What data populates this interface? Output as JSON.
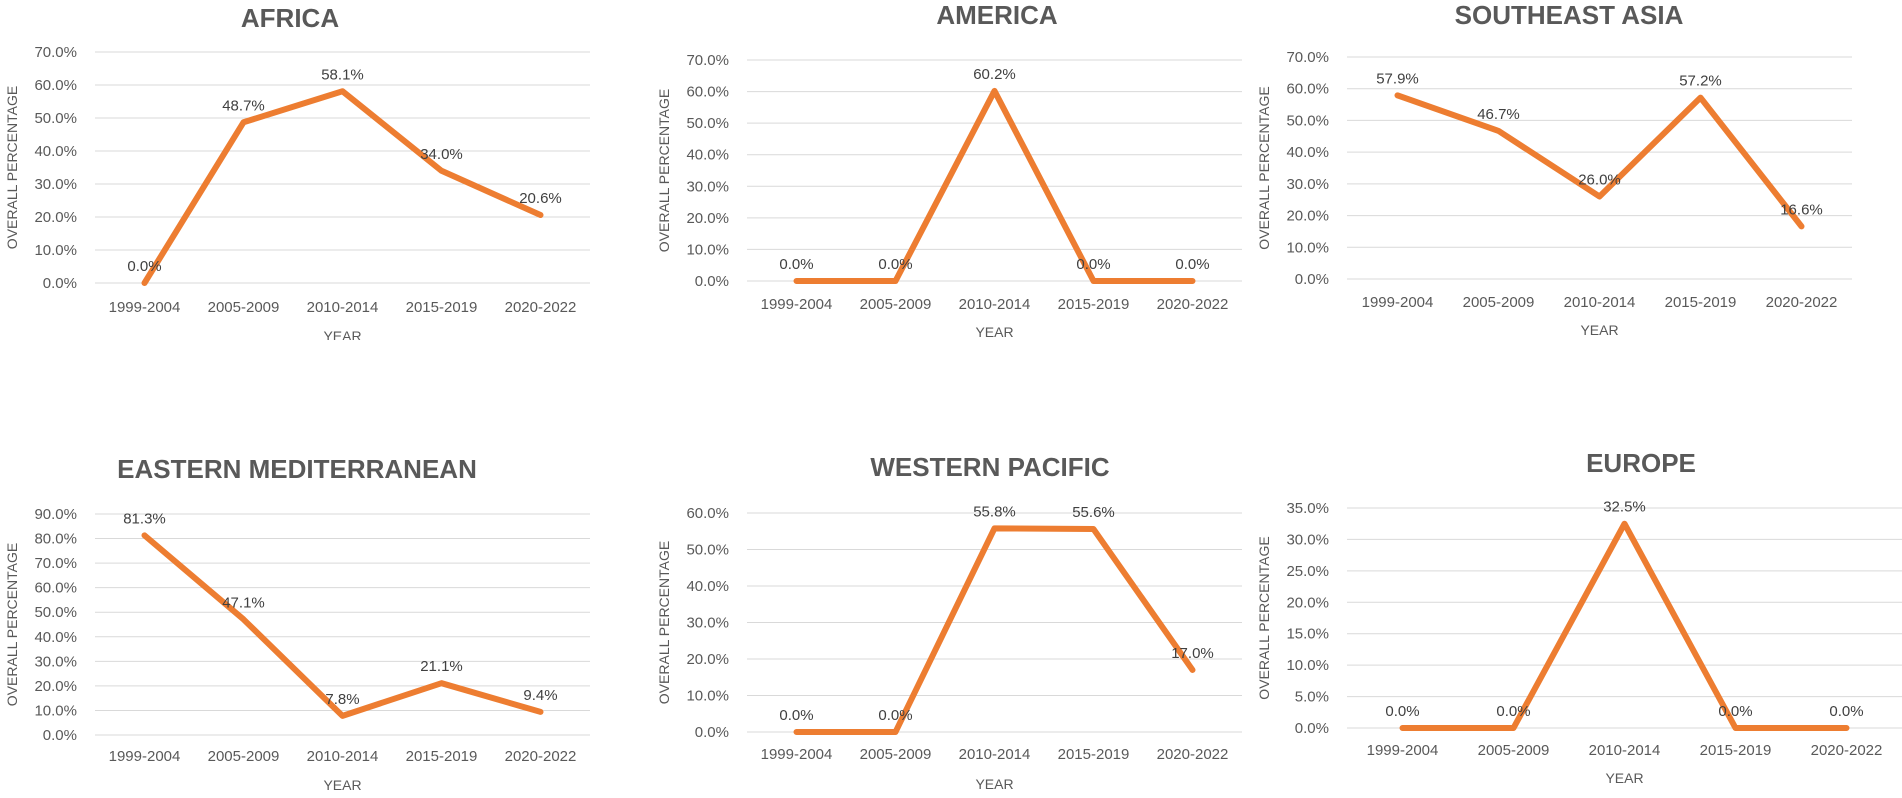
{
  "chart_data": [
    {
      "type": "line",
      "title": "AFRICA",
      "xlabel": "YEAR",
      "ylabel": "OVERALL PERCENTAGE",
      "categories": [
        "1999-2004",
        "2005-2009",
        "2010-2014",
        "2015-2019",
        "2020-2022"
      ],
      "values": [
        0.0,
        48.7,
        58.1,
        34.0,
        20.6
      ],
      "data_labels": [
        "0.0%",
        "48.7%",
        "58.1%",
        "34.0%",
        "20.6%"
      ],
      "yticks": [
        "0.0%",
        "10.0%",
        "20.0%",
        "30.0%",
        "40.0%",
        "50.0%",
        "60.0%",
        "70.0%"
      ],
      "ylim": [
        0,
        70
      ],
      "grid": true,
      "color": "#ED7D31"
    },
    {
      "type": "line",
      "title": "AMERICA",
      "xlabel": "YEAR",
      "ylabel": "OVERALL PERCENTAGE",
      "categories": [
        "1999-2004",
        "2005-2009",
        "2010-2014",
        "2015-2019",
        "2020-2022"
      ],
      "values": [
        0.0,
        0.0,
        60.2,
        0.0,
        0.0
      ],
      "data_labels": [
        "0.0%",
        "0.0%",
        "60.2%",
        "0.0%",
        "0.0%"
      ],
      "yticks": [
        "0.0%",
        "10.0%",
        "20.0%",
        "30.0%",
        "40.0%",
        "50.0%",
        "60.0%",
        "70.0%"
      ],
      "ylim": [
        0,
        70
      ],
      "grid": true,
      "color": "#ED7D31"
    },
    {
      "type": "line",
      "title": "SOUTHEAST ASIA",
      "xlabel": "YEAR",
      "ylabel": "OVERALL PERCENTAGE",
      "categories": [
        "1999-2004",
        "2005-2009",
        "2010-2014",
        "2015-2019",
        "2020-2022"
      ],
      "values": [
        57.9,
        46.7,
        26.0,
        57.2,
        16.6
      ],
      "data_labels": [
        "57.9%",
        "46.7%",
        "26.0%",
        "57.2%",
        "16.6%"
      ],
      "yticks": [
        "0.0%",
        "10.0%",
        "20.0%",
        "30.0%",
        "40.0%",
        "50.0%",
        "60.0%",
        "70.0%"
      ],
      "ylim": [
        0,
        70
      ],
      "grid": true,
      "color": "#ED7D31"
    },
    {
      "type": "line",
      "title": "EASTERN MEDITERRANEAN",
      "xlabel": "YEAR",
      "ylabel": "OVERALL PERCENTAGE",
      "categories": [
        "1999-2004",
        "2005-2009",
        "2010-2014",
        "2015-2019",
        "2020-2022"
      ],
      "values": [
        81.3,
        47.1,
        7.8,
        21.1,
        9.4
      ],
      "data_labels": [
        "81.3%",
        "47.1%",
        "7.8%",
        "21.1%",
        "9.4%"
      ],
      "yticks": [
        "0.0%",
        "10.0%",
        "20.0%",
        "30.0%",
        "40.0%",
        "50.0%",
        "60.0%",
        "70.0%",
        "80.0%",
        "90.0%"
      ],
      "ylim": [
        0,
        90
      ],
      "grid": true,
      "color": "#ED7D31"
    },
    {
      "type": "line",
      "title": "WESTERN PACIFIC",
      "xlabel": "YEAR",
      "ylabel": "OVERALL PERCENTAGE",
      "categories": [
        "1999-2004",
        "2005-2009",
        "2010-2014",
        "2015-2019",
        "2020-2022"
      ],
      "values": [
        0.0,
        0.0,
        55.8,
        55.6,
        17.0
      ],
      "data_labels": [
        "0.0%",
        "0.0%",
        "55.8%",
        "55.6%",
        "17.0%"
      ],
      "yticks": [
        "0.0%",
        "10.0%",
        "20.0%",
        "30.0%",
        "40.0%",
        "50.0%",
        "60.0%"
      ],
      "ylim": [
        0,
        60
      ],
      "grid": true,
      "color": "#ED7D31"
    },
    {
      "type": "line",
      "title": "EUROPE",
      "xlabel": "YEAR",
      "ylabel": "OVERALL PERCENTAGE",
      "categories": [
        "1999-2004",
        "2005-2009",
        "2010-2014",
        "2015-2019",
        "2020-2022"
      ],
      "values": [
        0.0,
        0.0,
        32.5,
        0.0,
        0.0
      ],
      "data_labels": [
        "0.0%",
        "0.0%",
        "32.5%",
        "0.0%",
        "0.0%"
      ],
      "yticks": [
        "0.0%",
        "5.0%",
        "10.0%",
        "15.0%",
        "20.0%",
        "25.0%",
        "30.0%",
        "35.0%"
      ],
      "ylim": [
        0,
        35
      ],
      "grid": true,
      "color": "#ED7D31"
    }
  ]
}
